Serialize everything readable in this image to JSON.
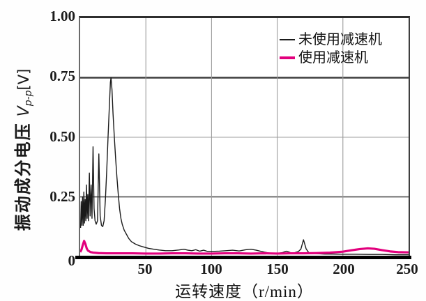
{
  "figure": {
    "x_title": "运转速度（r/min）",
    "y_title_cjk": "振动成分电压",
    "y_title_var": "V",
    "y_title_sub": "p-p",
    "y_title_unit": "[V]",
    "origin_label": "0"
  },
  "legend": {
    "items": [
      {
        "label": "未使用减速机",
        "color": "#1a1a1a"
      },
      {
        "label": "使用减速机",
        "color": "#e2007d"
      }
    ]
  },
  "chart_data": {
    "type": "line",
    "title": "",
    "xlabel": "运转速度（r/min）",
    "ylabel": "振动成分电压 Vp-p[V]",
    "xlim": [
      0,
      250
    ],
    "ylim": [
      0,
      1.0
    ],
    "grid": true,
    "legend_position": "top-right",
    "x_ticks": [
      {
        "label": "50",
        "value": 50,
        "grid_weight": "light"
      },
      {
        "label": "100",
        "value": 100,
        "grid_weight": "light"
      },
      {
        "label": "150",
        "value": 150,
        "grid_weight": "light"
      },
      {
        "label": "200",
        "value": 200,
        "grid_weight": "light"
      },
      {
        "label": "250",
        "value": 250,
        "grid_weight": "border"
      }
    ],
    "y_ticks": [
      {
        "label": "1.00",
        "value": 1.0,
        "grid_weight": "border"
      },
      {
        "label": "0.75",
        "value": 0.75,
        "grid_weight": "heavy"
      },
      {
        "label": "0.50",
        "value": 0.5,
        "grid_weight": "light"
      },
      {
        "label": "0.25",
        "value": 0.25,
        "grid_weight": "medium"
      }
    ],
    "series": [
      {
        "name": "未使用减速机",
        "color": "#1a1a1a",
        "stroke_width": 1.4,
        "points": [
          [
            0.3,
            0.12
          ],
          [
            0.8,
            0.23
          ],
          [
            1.3,
            0.13
          ],
          [
            1.8,
            0.25
          ],
          [
            2.3,
            0.13
          ],
          [
            2.8,
            0.27
          ],
          [
            3.3,
            0.14
          ],
          [
            3.8,
            0.24
          ],
          [
            4.3,
            0.15
          ],
          [
            4.8,
            0.3
          ],
          [
            5.3,
            0.16
          ],
          [
            5.8,
            0.26
          ],
          [
            6.3,
            0.15
          ],
          [
            7.0,
            0.35
          ],
          [
            7.6,
            0.17
          ],
          [
            8.3,
            0.3
          ],
          [
            9.0,
            0.16
          ],
          [
            9.8,
            0.46
          ],
          [
            10.6,
            0.2
          ],
          [
            11.3,
            0.15
          ],
          [
            12.2,
            0.135
          ],
          [
            13.2,
            0.15
          ],
          [
            14.2,
            0.43
          ],
          [
            15.2,
            0.17
          ],
          [
            16.2,
            0.13
          ],
          [
            17.2,
            0.125
          ],
          [
            18.2,
            0.15
          ],
          [
            19.2,
            0.24
          ],
          [
            20.2,
            0.36
          ],
          [
            21.2,
            0.5
          ],
          [
            22.2,
            0.63
          ],
          [
            23.0,
            0.73
          ],
          [
            23.5,
            0.75
          ],
          [
            24.2,
            0.7
          ],
          [
            25.0,
            0.6
          ],
          [
            26.0,
            0.5
          ],
          [
            27.0,
            0.41
          ],
          [
            28.0,
            0.33
          ],
          [
            29.0,
            0.26
          ],
          [
            30.0,
            0.2
          ],
          [
            31.0,
            0.16
          ],
          [
            32.0,
            0.135
          ],
          [
            33.5,
            0.11
          ],
          [
            35,
            0.095
          ],
          [
            37,
            0.075
          ],
          [
            39,
            0.062
          ],
          [
            42,
            0.052
          ],
          [
            45,
            0.045
          ],
          [
            48,
            0.04
          ],
          [
            52,
            0.034
          ],
          [
            56,
            0.03
          ],
          [
            60,
            0.027
          ],
          [
            65,
            0.024
          ],
          [
            70,
            0.024
          ],
          [
            75,
            0.027
          ],
          [
            79,
            0.03
          ],
          [
            82,
            0.026
          ],
          [
            85,
            0.024
          ],
          [
            88,
            0.028
          ],
          [
            91,
            0.022
          ],
          [
            94,
            0.026
          ],
          [
            97,
            0.021
          ],
          [
            101,
            0.021
          ],
          [
            106,
            0.022
          ],
          [
            111,
            0.024
          ],
          [
            116,
            0.026
          ],
          [
            121,
            0.023
          ],
          [
            126,
            0.028
          ],
          [
            130,
            0.03
          ],
          [
            134,
            0.026
          ],
          [
            140,
            0.018
          ],
          [
            145,
            0.013
          ],
          [
            150,
            0.013
          ],
          [
            154,
            0.016
          ],
          [
            157,
            0.022
          ],
          [
            160,
            0.016
          ],
          [
            163,
            0.015
          ],
          [
            166,
            0.02
          ],
          [
            168,
            0.03
          ],
          [
            170,
            0.07
          ],
          [
            172,
            0.032
          ],
          [
            174,
            0.016
          ],
          [
            177,
            0.013
          ],
          [
            181,
            0.011
          ],
          [
            186,
            0.01
          ],
          [
            192,
            0.01
          ],
          [
            200,
            0.009
          ],
          [
            210,
            0.009
          ],
          [
            220,
            0.008
          ],
          [
            230,
            0.008
          ],
          [
            240,
            0.007
          ],
          [
            250,
            0.007
          ]
        ]
      },
      {
        "name": "使用减速机",
        "color": "#e2007d",
        "stroke_width": 3.2,
        "points": [
          [
            0,
            0.018
          ],
          [
            1,
            0.028
          ],
          [
            2,
            0.048
          ],
          [
            3,
            0.065
          ],
          [
            4,
            0.052
          ],
          [
            5,
            0.033
          ],
          [
            6,
            0.024
          ],
          [
            8,
            0.018
          ],
          [
            10,
            0.016
          ],
          [
            14,
            0.014
          ],
          [
            20,
            0.013
          ],
          [
            30,
            0.013
          ],
          [
            40,
            0.013
          ],
          [
            50,
            0.012
          ],
          [
            60,
            0.012
          ],
          [
            70,
            0.013
          ],
          [
            80,
            0.013
          ],
          [
            90,
            0.012
          ],
          [
            100,
            0.012
          ],
          [
            110,
            0.013
          ],
          [
            120,
            0.013
          ],
          [
            130,
            0.012
          ],
          [
            140,
            0.013
          ],
          [
            150,
            0.012
          ],
          [
            160,
            0.013
          ],
          [
            170,
            0.013
          ],
          [
            180,
            0.014
          ],
          [
            190,
            0.016
          ],
          [
            200,
            0.02
          ],
          [
            207,
            0.026
          ],
          [
            213,
            0.031
          ],
          [
            219,
            0.034
          ],
          [
            224,
            0.032
          ],
          [
            230,
            0.026
          ],
          [
            236,
            0.021
          ],
          [
            242,
            0.018
          ],
          [
            250,
            0.017
          ]
        ]
      }
    ]
  }
}
